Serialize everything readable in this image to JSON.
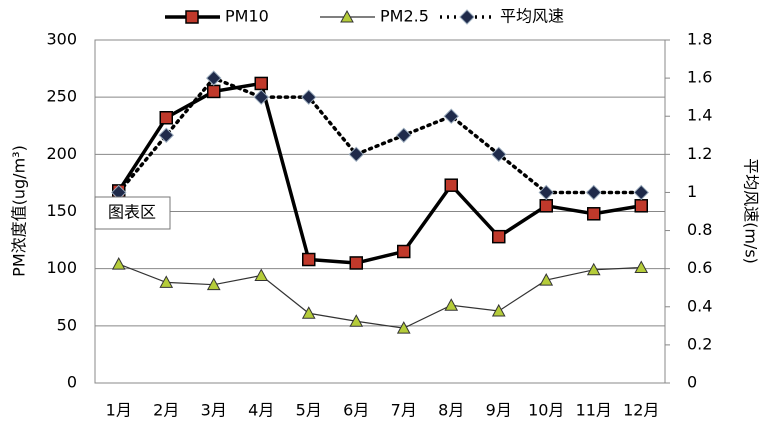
{
  "chart_data": {
    "type": "line",
    "categories": [
      "1月",
      "2月",
      "3月",
      "4月",
      "5月",
      "6月",
      "7月",
      "8月",
      "9月",
      "10月",
      "11月",
      "12月"
    ],
    "series": [
      {
        "name": "PM10",
        "color": "#000000",
        "marker": "square",
        "marker_color": "#c0392b",
        "values": [
          168,
          232,
          255,
          262,
          108,
          105,
          115,
          173,
          128,
          155,
          148,
          155
        ]
      },
      {
        "name": "PM2.5",
        "color": "#333333",
        "marker": "triangle",
        "marker_color": "#b5cc3a",
        "values": [
          104,
          88,
          86,
          94,
          61,
          54,
          48,
          68,
          63,
          90,
          99,
          101
        ]
      },
      {
        "name": "平均风速",
        "color": "#000000",
        "marker": "diamond",
        "marker_color": "#1f2a4a",
        "axis": "y2",
        "values": [
          1.0,
          1.3,
          1.6,
          1.5,
          1.5,
          1.2,
          1.3,
          1.4,
          1.2,
          1.0,
          1.0,
          1.0
        ]
      }
    ],
    "ylabel": "PM浓度值(ug/m³)",
    "y2label": "平均风速(m/s)",
    "ylim": [
      0,
      300
    ],
    "yticks": [
      0,
      50,
      100,
      150,
      200,
      250,
      300
    ],
    "y2lim": [
      0,
      1.8
    ],
    "y2ticks": [
      0,
      0.2,
      0.4,
      0.6,
      0.8,
      1,
      1.2,
      1.4,
      1.6,
      1.8
    ],
    "grid": true,
    "legend": "top",
    "annotation": "图表区"
  }
}
